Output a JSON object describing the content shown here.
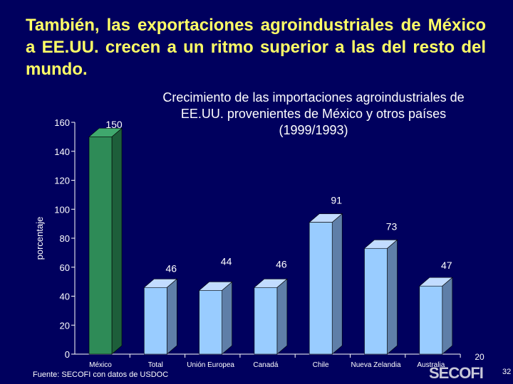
{
  "slide": {
    "title": "También, las exportaciones agroindustriales de México a EE.UU. crecen a un ritmo superior a las del resto del mundo.",
    "source": "Fuente: SECOFI con datos de USDOC",
    "logo": "SECOFI",
    "slide_number": "32"
  },
  "chart_data": {
    "type": "bar",
    "title_lines": [
      "Crecimiento de las importaciones agroindustriales de",
      "EE.UU. provenientes de México y otros países",
      "(1999/1993)"
    ],
    "ylabel": "porcentaje",
    "ylim": [
      0,
      160
    ],
    "yticks": [
      0,
      20,
      40,
      60,
      80,
      100,
      120,
      140,
      160
    ],
    "categories": [
      "México",
      "Total",
      "Unión Europea",
      "Canadá",
      "Chile",
      "Nueva Zelandia",
      "Australia"
    ],
    "values": [
      150,
      46,
      44,
      46,
      91,
      73,
      47
    ],
    "data_labels": [
      "150",
      "46",
      "44",
      "46",
      "91",
      "73",
      "47"
    ],
    "extra_label": "20",
    "colors": {
      "highlight": "#2e8b57",
      "bar": "#99ccff",
      "axis": "#ffffff",
      "title": "#ffff66"
    }
  }
}
